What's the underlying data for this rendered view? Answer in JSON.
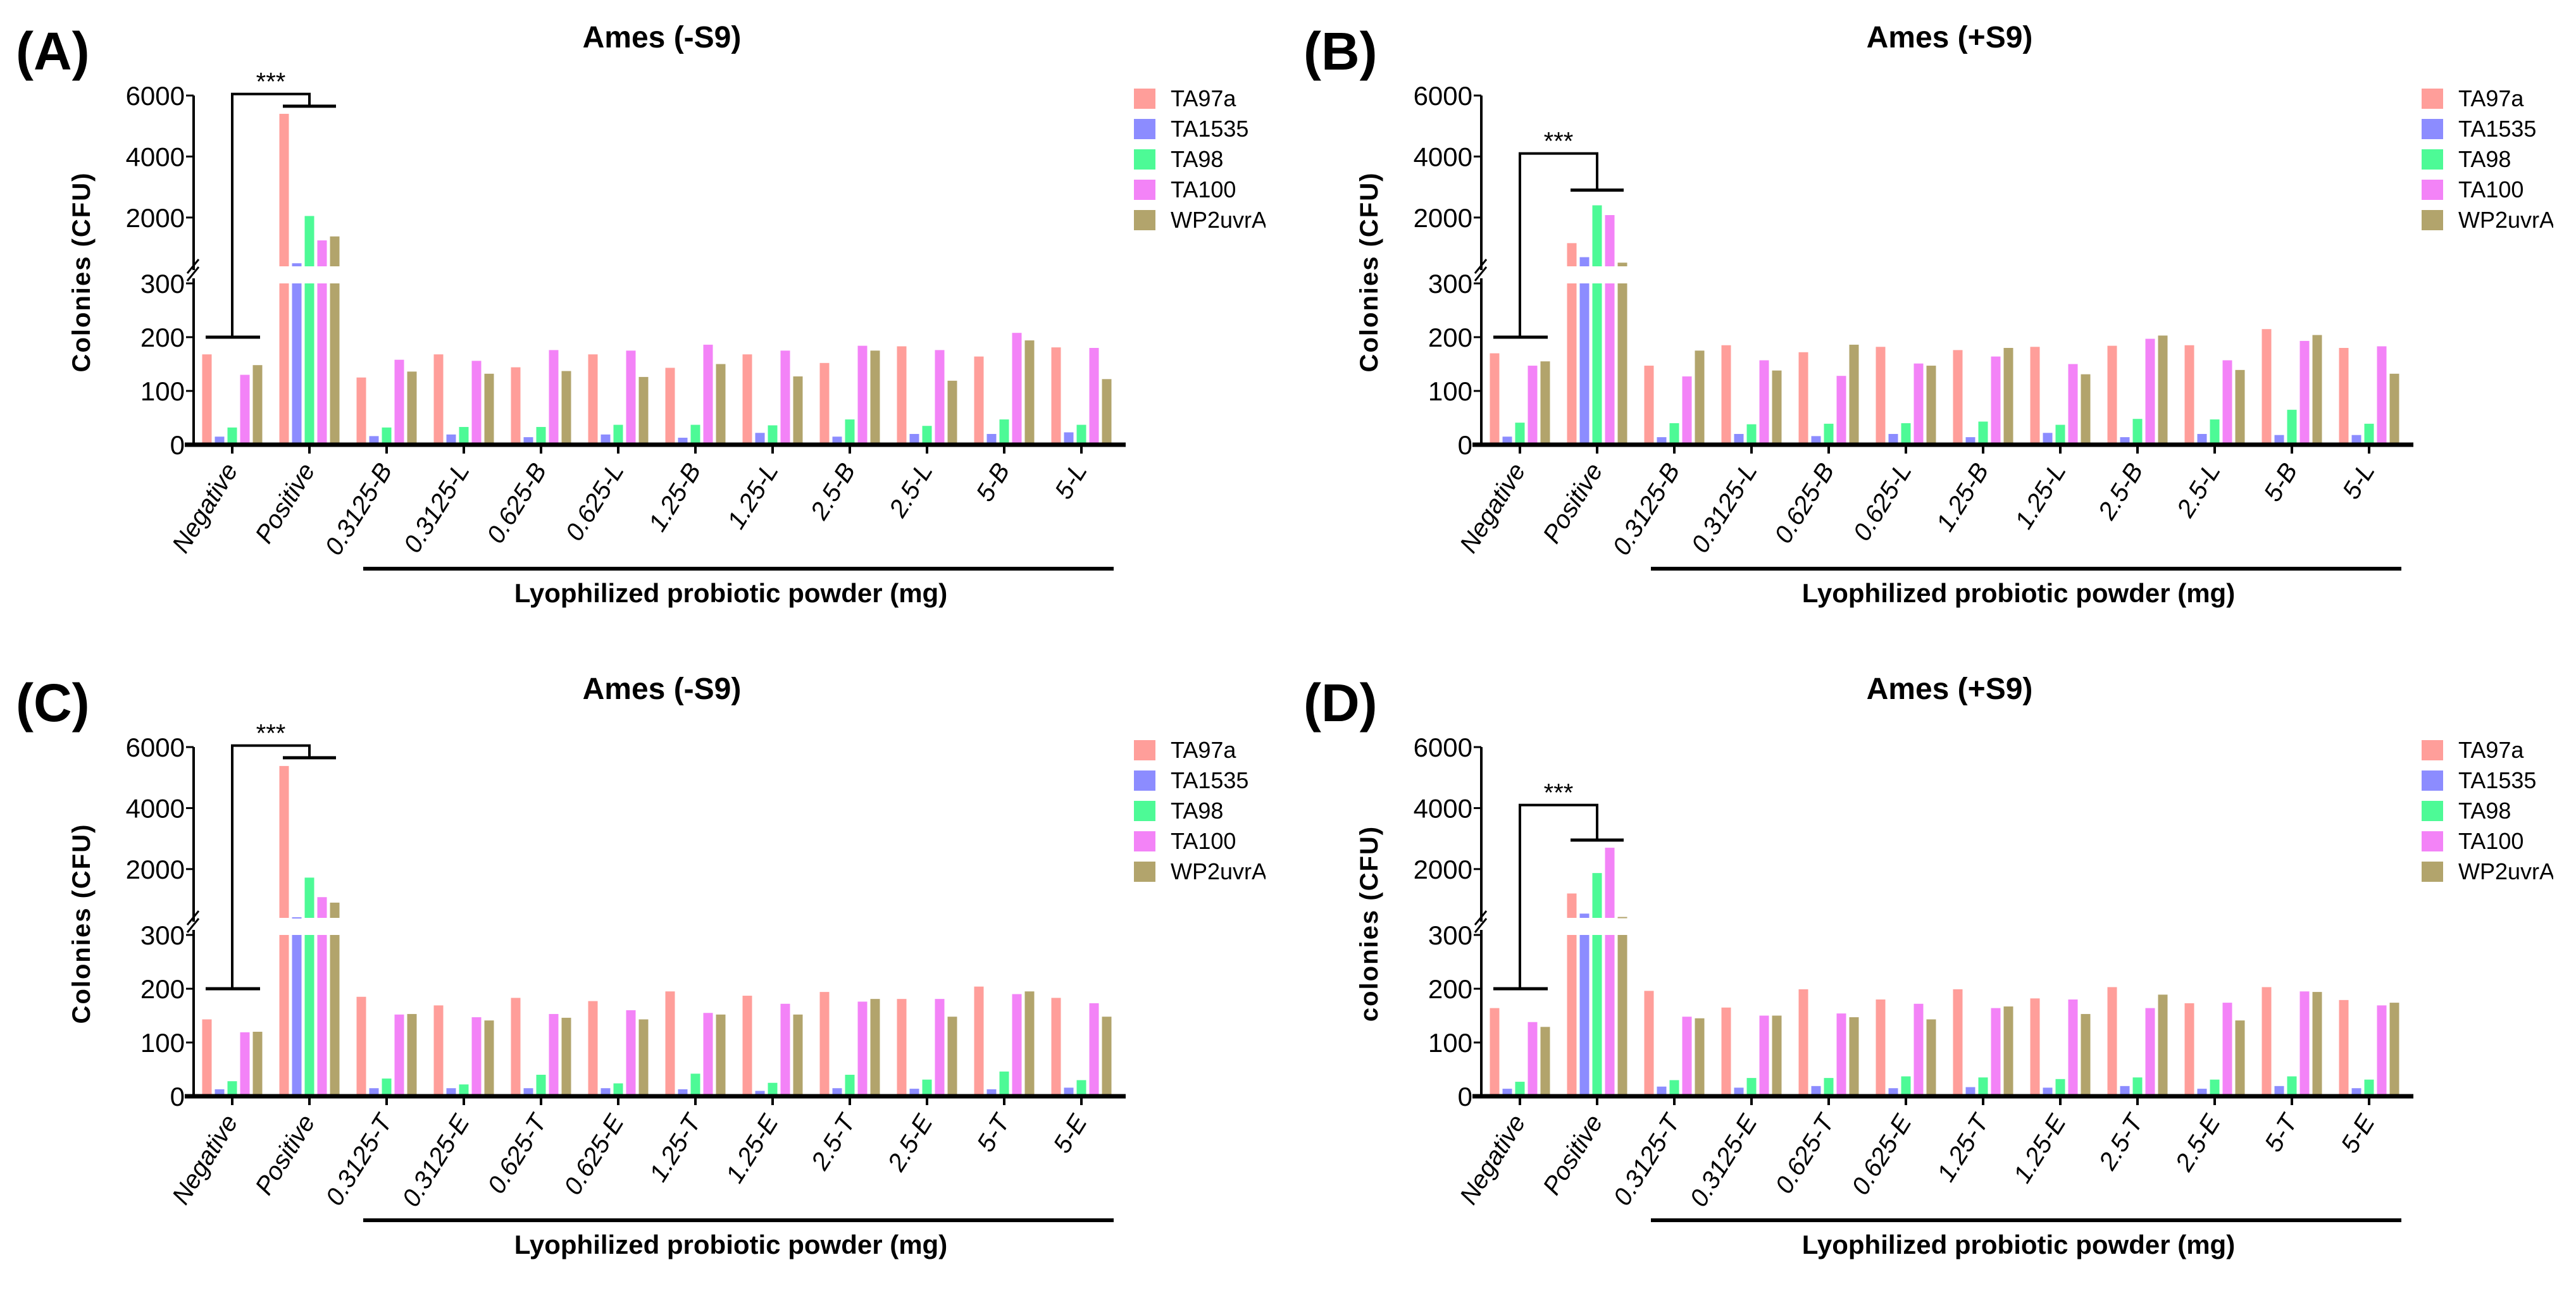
{
  "chart_data": [
    {
      "type": "bar",
      "panel_label": "(A)",
      "title": "Ames (-S9)",
      "ylabel": "Colonies (CFU)",
      "xlabel": "Lyophilized probiotic powder (mg)",
      "y_axis": {
        "broken": true,
        "lower_range": [
          0,
          300
        ],
        "lower_ticks": [
          0,
          100,
          200,
          300
        ],
        "upper_range": [
          400,
          6000
        ],
        "upper_ticks": [
          2000,
          4000,
          6000
        ]
      },
      "legend_position": "top-right",
      "grid": false,
      "significance": {
        "text": "***",
        "from": "Negative",
        "to": "Positive"
      },
      "categories": [
        "Negative",
        "Positive",
        "0.3125-B",
        "0.3125-L",
        "0.625-B",
        "0.625-L",
        "1.25-B",
        "1.25-L",
        "2.5-B",
        "2.5-L",
        "5-B",
        "5-L"
      ],
      "series": [
        {
          "name": "TA97a",
          "color": "#FF9E9A",
          "values": [
            168,
            5400,
            125,
            168,
            144,
            168,
            143,
            168,
            152,
            183,
            164,
            181
          ]
        },
        {
          "name": "TA1535",
          "color": "#8C8CFF",
          "values": [
            15,
            500,
            16,
            19,
            14,
            19,
            13,
            22,
            15,
            20,
            20,
            23
          ]
        },
        {
          "name": "TA98",
          "color": "#4DFA96",
          "values": [
            32,
            2050,
            32,
            33,
            33,
            37,
            37,
            36,
            47,
            35,
            47,
            37
          ]
        },
        {
          "name": "TA100",
          "color": "#F383F7",
          "values": [
            130,
            1250,
            158,
            156,
            176,
            175,
            186,
            175,
            184,
            176,
            208,
            180
          ]
        },
        {
          "name": "WP2uvrA",
          "color": "#B2A46C",
          "values": [
            148,
            1380,
            136,
            132,
            137,
            126,
            150,
            127,
            175,
            119,
            194,
            122
          ]
        }
      ]
    },
    {
      "type": "bar",
      "panel_label": "(B)",
      "title": "Ames (+S9)",
      "ylabel": "Colonies (CFU)",
      "xlabel": "Lyophilized probiotic powder (mg)",
      "y_axis": {
        "broken": true,
        "lower_range": [
          0,
          300
        ],
        "lower_ticks": [
          0,
          100,
          200,
          300
        ],
        "upper_range": [
          400,
          6000
        ],
        "upper_ticks": [
          2000,
          4000,
          6000
        ]
      },
      "legend_position": "top-right",
      "grid": false,
      "significance": {
        "text": "***",
        "from": "Negative",
        "to": "Positive"
      },
      "categories": [
        "Negative",
        "Positive",
        "0.3125-B",
        "0.3125-L",
        "0.625-B",
        "0.625-L",
        "1.25-B",
        "1.25-L",
        "2.5-B",
        "2.5-L",
        "5-B",
        "5-L"
      ],
      "series": [
        {
          "name": "TA97a",
          "color": "#FF9E9A",
          "values": [
            170,
            1160,
            147,
            185,
            172,
            182,
            176,
            182,
            184,
            185,
            215,
            180
          ]
        },
        {
          "name": "TA1535",
          "color": "#8C8CFF",
          "values": [
            15,
            700,
            14,
            20,
            16,
            20,
            14,
            22,
            14,
            20,
            18,
            18
          ]
        },
        {
          "name": "TA98",
          "color": "#4DFA96",
          "values": [
            41,
            2400,
            40,
            38,
            39,
            40,
            43,
            37,
            48,
            47,
            65,
            39
          ]
        },
        {
          "name": "TA100",
          "color": "#F383F7",
          "values": [
            147,
            2080,
            127,
            157,
            128,
            151,
            164,
            150,
            197,
            157,
            193,
            183
          ]
        },
        {
          "name": "WP2uvrA",
          "color": "#B2A46C",
          "values": [
            155,
            520,
            175,
            138,
            186,
            147,
            180,
            131,
            203,
            139,
            204,
            132
          ]
        }
      ]
    },
    {
      "type": "bar",
      "panel_label": "(C)",
      "title": "Ames (-S9)",
      "ylabel": "Colonies (CFU)",
      "xlabel": "Lyophilized probiotic powder (mg)",
      "y_axis": {
        "broken": true,
        "lower_range": [
          0,
          300
        ],
        "lower_ticks": [
          0,
          100,
          200,
          300
        ],
        "upper_range": [
          400,
          6000
        ],
        "upper_ticks": [
          2000,
          4000,
          6000
        ]
      },
      "legend_position": "top-right",
      "grid": false,
      "significance": {
        "text": "***",
        "from": "Negative",
        "to": "Positive"
      },
      "categories": [
        "Negative",
        "Positive",
        "0.3125-T",
        "0.3125-E",
        "0.625-T",
        "0.625-E",
        "1.25-T",
        "1.25-E",
        "2.5-T",
        "2.5-E",
        "5-T",
        "5-E"
      ],
      "series": [
        {
          "name": "TA97a",
          "color": "#FF9E9A",
          "values": [
            143,
            5380,
            185,
            169,
            183,
            177,
            195,
            187,
            194,
            181,
            204,
            183
          ]
        },
        {
          "name": "TA1535",
          "color": "#8C8CFF",
          "values": [
            13,
            420,
            15,
            15,
            15,
            15,
            13,
            10,
            15,
            14,
            13,
            16
          ]
        },
        {
          "name": "TA98",
          "color": "#4DFA96",
          "values": [
            28,
            1720,
            33,
            22,
            40,
            24,
            42,
            25,
            40,
            31,
            46,
            30
          ]
        },
        {
          "name": "TA100",
          "color": "#F383F7",
          "values": [
            119,
            1080,
            152,
            147,
            153,
            160,
            155,
            172,
            176,
            181,
            190,
            173
          ]
        },
        {
          "name": "WP2uvrA",
          "color": "#B2A46C",
          "values": [
            120,
            900,
            153,
            141,
            146,
            143,
            152,
            152,
            181,
            148,
            195,
            148
          ]
        }
      ]
    },
    {
      "type": "bar",
      "panel_label": "(D)",
      "title": "Ames (+S9)",
      "ylabel": "colonies (CFU)",
      "xlabel": "Lyophilized probiotic powder (mg)",
      "y_axis": {
        "broken": true,
        "lower_range": [
          0,
          300
        ],
        "lower_ticks": [
          0,
          100,
          200,
          300
        ],
        "upper_range": [
          400,
          6000
        ],
        "upper_ticks": [
          2000,
          4000,
          6000
        ]
      },
      "legend_position": "top-right",
      "grid": false,
      "significance": {
        "text": "***",
        "from": "Negative",
        "to": "Positive"
      },
      "categories": [
        "Negative",
        "Positive",
        "0.3125-T",
        "0.3125-E",
        "0.625-T",
        "0.625-E",
        "1.25-T",
        "1.25-E",
        "2.5-T",
        "2.5-E",
        "5-T",
        "5-E"
      ],
      "series": [
        {
          "name": "TA97a",
          "color": "#FF9E9A",
          "values": [
            164,
            1200,
            196,
            165,
            199,
            180,
            199,
            182,
            203,
            173,
            203,
            179
          ]
        },
        {
          "name": "TA1535",
          "color": "#8C8CFF",
          "values": [
            14,
            540,
            18,
            16,
            19,
            15,
            17,
            16,
            19,
            14,
            19,
            15
          ]
        },
        {
          "name": "TA98",
          "color": "#4DFA96",
          "values": [
            27,
            1870,
            30,
            34,
            34,
            37,
            35,
            32,
            35,
            31,
            37,
            31
          ]
        },
        {
          "name": "TA100",
          "color": "#F383F7",
          "values": [
            138,
            2700,
            148,
            150,
            154,
            172,
            164,
            180,
            164,
            174,
            195,
            169
          ]
        },
        {
          "name": "WP2uvrA",
          "color": "#B2A46C",
          "values": [
            129,
            430,
            145,
            150,
            147,
            143,
            167,
            153,
            189,
            141,
            194,
            174
          ]
        }
      ]
    }
  ]
}
